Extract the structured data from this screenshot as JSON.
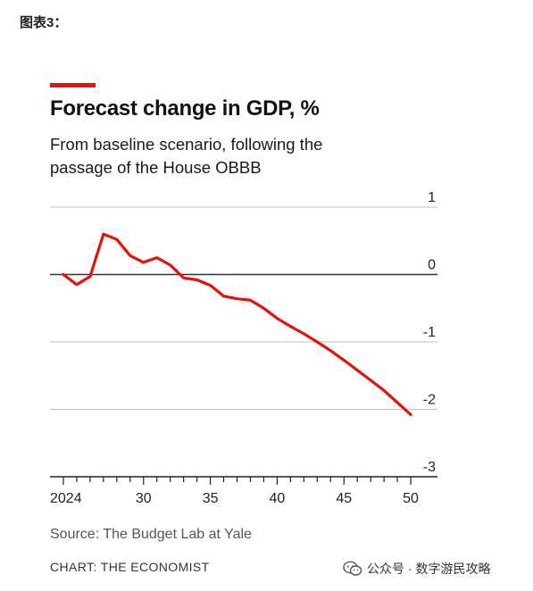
{
  "caption": "图表3：",
  "chart_data": {
    "type": "line",
    "title": "Forecast change in GDP, %",
    "subtitle": "From baseline scenario, following the passage of the House OBBB",
    "x": [
      2024,
      2025,
      2026,
      2027,
      2028,
      2029,
      2030,
      2031,
      2032,
      2033,
      2034,
      2035,
      2036,
      2037,
      2038,
      2039,
      2040,
      2041,
      2042,
      2043,
      2044,
      2045,
      2046,
      2047,
      2048,
      2049,
      2050
    ],
    "series": [
      {
        "values": [
          0.0,
          -0.15,
          -0.03,
          0.6,
          0.52,
          0.28,
          0.18,
          0.25,
          0.14,
          -0.05,
          -0.08,
          -0.16,
          -0.32,
          -0.36,
          -0.38,
          -0.5,
          -0.65,
          -0.77,
          -0.88,
          -1.0,
          -1.13,
          -1.27,
          -1.42,
          -1.57,
          -1.72,
          -1.9,
          -2.08
        ],
        "color": "#e3120b"
      }
    ],
    "x_ticks": [
      "2024",
      "30",
      "35",
      "40",
      "45",
      "50"
    ],
    "x_tick_values": [
      2024,
      2030,
      2035,
      2040,
      2045,
      2050
    ],
    "y_ticks": [
      "1",
      "0",
      "-1",
      "-2",
      "-3"
    ],
    "y_tick_values": [
      1,
      0,
      -1,
      -2,
      -3
    ],
    "xlim": [
      2023,
      2052
    ],
    "ylim": [
      -3,
      1
    ],
    "xlabel": "",
    "ylabel": "",
    "grid": true,
    "source": "Source: The Budget Lab at Yale",
    "credit": "CHART: THE ECONOMIST"
  },
  "watermark": {
    "text": "公众号 · 数字游民攻略",
    "icon": "wechat-icon"
  }
}
